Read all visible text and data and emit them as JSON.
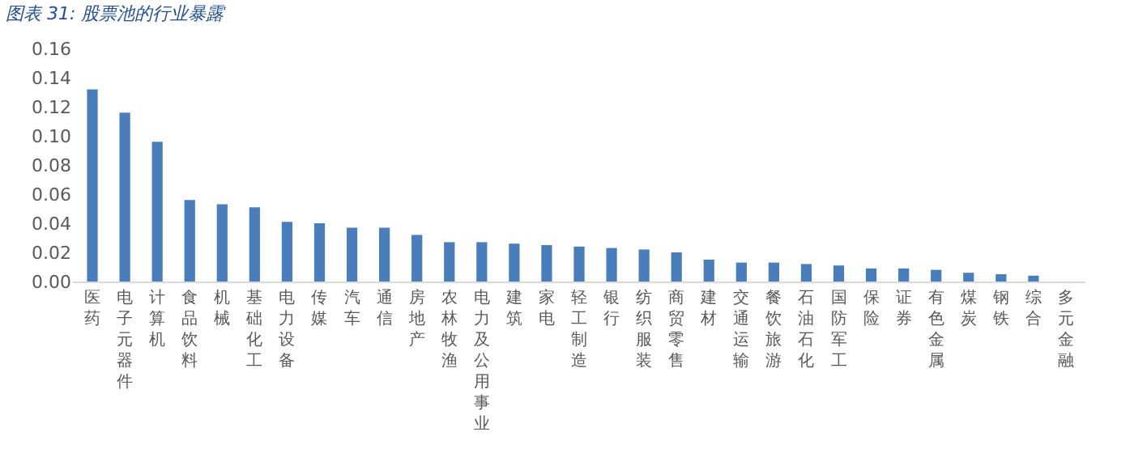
{
  "chart_data": {
    "type": "bar",
    "title": "图表 31: 股票池的行业暴露",
    "categories": [
      "医药",
      "电子元器件",
      "计算机",
      "食品饮料",
      "机械",
      "基础化工",
      "电力设备",
      "传媒",
      "汽车",
      "通信",
      "房地产",
      "农林牧渔",
      "电力及公用事业",
      "建筑",
      "家电",
      "轻工制造",
      "银行",
      "纺织服装",
      "商贸零售",
      "建材",
      "交通运输",
      "餐饮旅游",
      "石油石化",
      "国防军工",
      "保险",
      "证券",
      "有色金属",
      "煤炭",
      "钢铁",
      "综合",
      "多元金融"
    ],
    "values": [
      0.132,
      0.116,
      0.096,
      0.056,
      0.053,
      0.051,
      0.041,
      0.04,
      0.037,
      0.037,
      0.032,
      0.027,
      0.027,
      0.026,
      0.025,
      0.024,
      0.023,
      0.022,
      0.02,
      0.015,
      0.013,
      0.013,
      0.012,
      0.011,
      0.009,
      0.009,
      0.008,
      0.006,
      0.005,
      0.004,
      0.0
    ],
    "color": "#4a7ebb",
    "ylim": [
      0,
      0.16
    ],
    "yticks": [
      {
        "value": 0,
        "label": "0.00"
      },
      {
        "value": 0.02,
        "label": "0.02"
      },
      {
        "value": 0.04,
        "label": "0.04"
      },
      {
        "value": 0.06,
        "label": "0.06"
      },
      {
        "value": 0.08,
        "label": "0.08"
      },
      {
        "value": 0.1,
        "label": "0.10"
      },
      {
        "value": 0.12,
        "label": "0.12"
      },
      {
        "value": 0.14,
        "label": "0.14"
      },
      {
        "value": 0.16,
        "label": "0.16"
      }
    ],
    "legend": false
  }
}
